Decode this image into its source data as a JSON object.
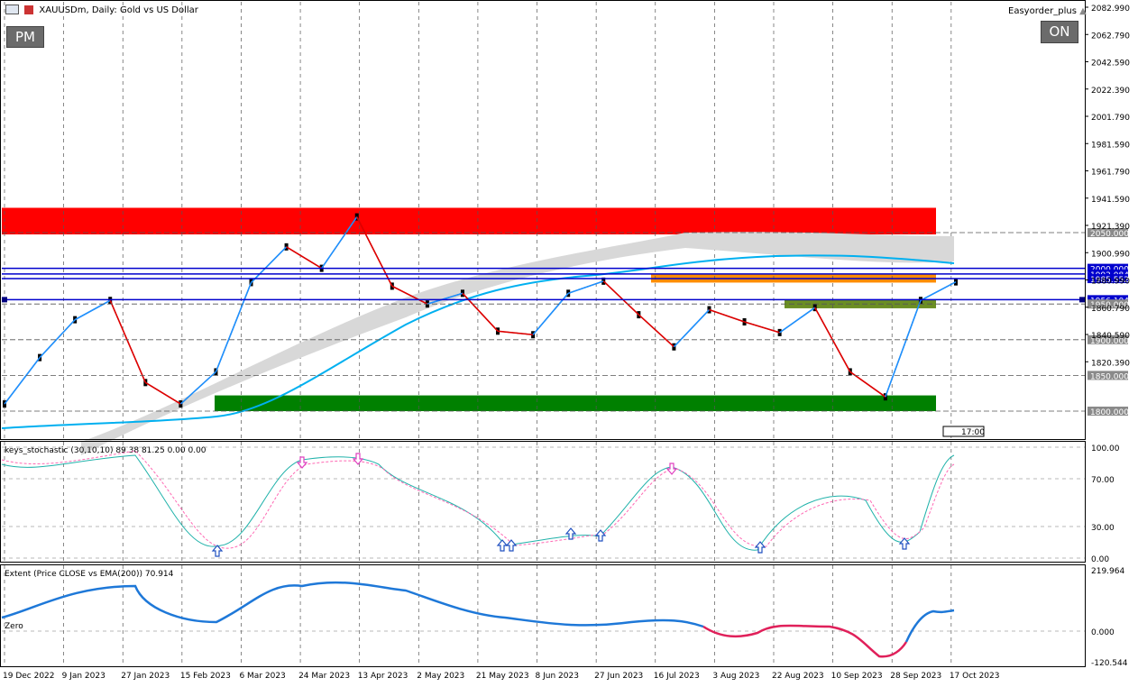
{
  "header": {
    "symbol_title": "XAUUSDm, Daily:  Gold vs US Dollar",
    "expert_name": "Easyorder_plus",
    "pm_button": "PM",
    "on_button": "ON",
    "time_marker": "17:00"
  },
  "price_axis": {
    "ticks": [
      "2082.990",
      "2062.790",
      "2042.590",
      "2022.390",
      "2001.790",
      "1981.590",
      "1961.790",
      "1941.590",
      "1921.390",
      "1900.990",
      "1880.990",
      "1860.790",
      "1840.590",
      "1820.390"
    ],
    "levels": [
      {
        "label": "2050.000",
        "price": 2050.0,
        "kind": "dash"
      },
      {
        "label": "2000.000",
        "price": 2000.0,
        "kind": "solid"
      },
      {
        "label": "1992.084",
        "price": 1992.084,
        "kind": "solid"
      },
      {
        "label": "1985.552",
        "price": 1985.552,
        "kind": "solid"
      },
      {
        "label": "1956.104",
        "price": 1956.104,
        "kind": "solid"
      },
      {
        "label": "1950.000",
        "price": 1950.0,
        "kind": "dash"
      },
      {
        "label": "1900.000",
        "price": 1900.0,
        "kind": "dash"
      },
      {
        "label": "1850.000",
        "price": 1850.0,
        "kind": "dash"
      },
      {
        "label": "1800.000",
        "price": 1800.0,
        "kind": "dash"
      }
    ]
  },
  "time_axis": {
    "labels": [
      "19 Dec 2022",
      "9 Jan 2023",
      "27 Jan 2023",
      "15 Feb 2023",
      "6 Mar 2023",
      "24 Mar 2023",
      "13 Apr 2023",
      "2 May 2023",
      "21 May 2023",
      "8 Jun 2023",
      "27 Jun 2023",
      "16 Jul 2023",
      "3 Aug 2023",
      "22 Aug 2023",
      "10 Sep 2023",
      "28 Sep 2023",
      "17 Oct 2023"
    ]
  },
  "stoch_panel": {
    "title": "keys_stochastic (30,10,10) 89.38 81.25 0.00 0.00",
    "ticks": [
      "100.00",
      "70.00",
      "30.00",
      "0.00"
    ]
  },
  "extent_panel": {
    "title": "Extent (Price CLOSE vs EMA(200)) 70.914",
    "zero_label": "Zero",
    "ticks": [
      "219.964",
      "0.000",
      "-120.544"
    ]
  },
  "colors": {
    "resistance_zone": "#ff0000",
    "support_zone": "#008000",
    "orange_zone": "#ff8c00",
    "olive_zone": "#6b8e23",
    "level_line": "#0000cd",
    "zigzag_up": "#1e90ff",
    "zigzag_down": "#e00000",
    "ema": "#00b0f0",
    "stoch_main": "#20b2aa",
    "stoch_signal": "#ff69b4"
  },
  "chart_data": {
    "type": "candlestick",
    "symbol": "XAUUSDm",
    "timeframe": "Daily",
    "price_range": [
      1792,
      2086
    ],
    "date_labels": [
      "19 Dec 2022",
      "9 Jan 2023",
      "27 Jan 2023",
      "15 Feb 2023",
      "6 Mar 2023",
      "24 Mar 2023",
      "13 Apr 2023",
      "2 May 2023",
      "21 May 2023",
      "8 Jun 2023",
      "27 Jun 2023",
      "16 Jul 2023",
      "3 Aug 2023",
      "22 Aug 2023",
      "10 Sep 2023",
      "28 Sep 2023",
      "17 Oct 2023"
    ],
    "close_path": [
      {
        "date": "19 Dec 2022",
        "price": 1810
      },
      {
        "date": "9 Jan 2023",
        "price": 1875
      },
      {
        "date": "27 Jan 2023",
        "price": 1928
      },
      {
        "date": "2 Feb 2023",
        "price": 1955
      },
      {
        "date": "15 Feb 2023",
        "price": 1840
      },
      {
        "date": "28 Feb 2023",
        "price": 1810
      },
      {
        "date": "6 Mar 2023",
        "price": 1855
      },
      {
        "date": "24 Mar 2023",
        "price": 1980
      },
      {
        "date": "4 Apr 2023",
        "price": 2030
      },
      {
        "date": "13 Apr 2023",
        "price": 2000
      },
      {
        "date": "4 May 2023",
        "price": 2072
      },
      {
        "date": "21 May 2023",
        "price": 1975
      },
      {
        "date": "31 May 2023",
        "price": 1950
      },
      {
        "date": "8 Jun 2023",
        "price": 1965
      },
      {
        "date": "27 Jun 2023",
        "price": 1912
      },
      {
        "date": "29 Jun 2023",
        "price": 1907
      },
      {
        "date": "16 Jul 2023",
        "price": 1965
      },
      {
        "date": "20 Jul 2023",
        "price": 1982
      },
      {
        "date": "3 Aug 2023",
        "price": 1935
      },
      {
        "date": "21 Aug 2023",
        "price": 1890
      },
      {
        "date": "29 Aug 2023",
        "price": 1942
      },
      {
        "date": "10 Sep 2023",
        "price": 1925
      },
      {
        "date": "14 Sep 2023",
        "price": 1910
      },
      {
        "date": "20 Sep 2023",
        "price": 1945
      },
      {
        "date": "28 Sep 2023",
        "price": 1855
      },
      {
        "date": "6 Oct 2023",
        "price": 1820
      },
      {
        "date": "17 Oct 2023",
        "price": 1955
      },
      {
        "date": "20 Oct 2023",
        "price": 1981
      }
    ],
    "zones": [
      {
        "name": "resistance",
        "from": 2050,
        "to": 2086,
        "color": "#ff0000"
      },
      {
        "name": "support",
        "from": 1800,
        "to": 1822,
        "color": "#008000"
      },
      {
        "name": "orange",
        "from": 1980,
        "to": 1992,
        "color": "#ff8c00"
      },
      {
        "name": "olive",
        "from": 1944,
        "to": 1956,
        "color": "#6b8e23"
      }
    ]
  }
}
